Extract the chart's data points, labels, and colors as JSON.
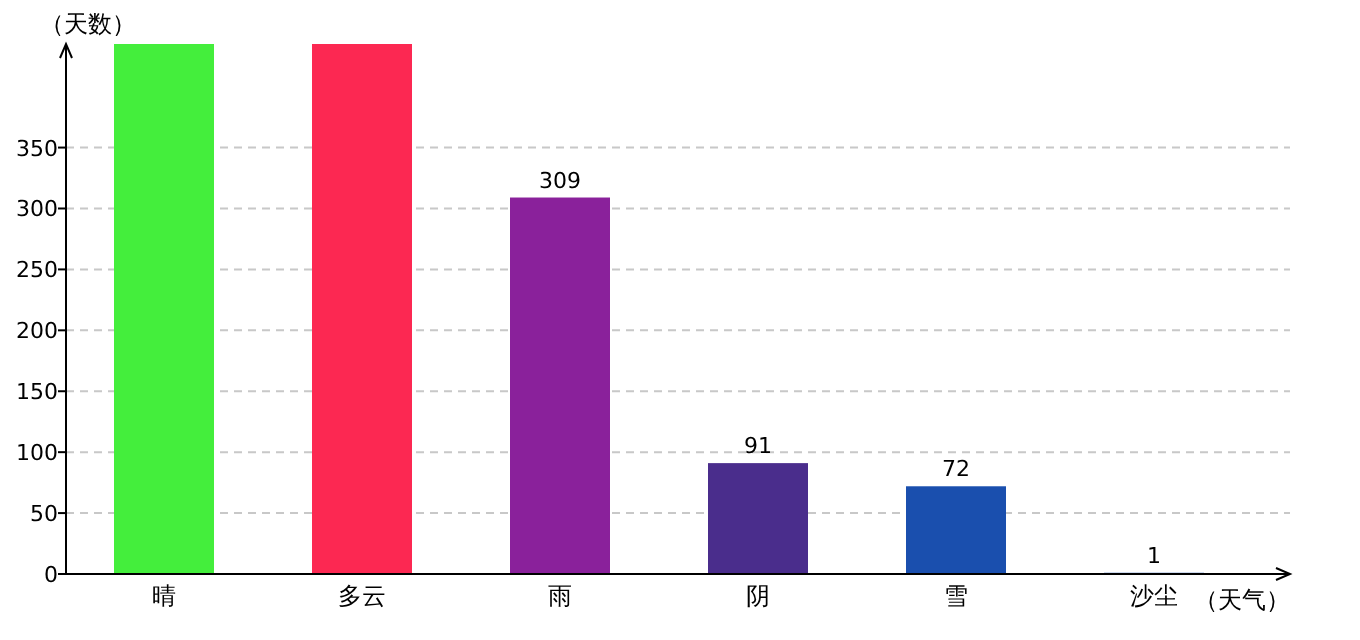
{
  "chart_data": {
    "type": "bar",
    "ylabel": "（天数）",
    "xlabel": "（天气）",
    "categories": [
      "晴",
      "多云",
      "雨",
      "阴",
      "雪",
      "沙尘"
    ],
    "values": [
      435,
      435,
      309,
      91,
      72,
      1
    ],
    "colors": [
      "#44ee3c",
      "#fc2852",
      "#8a219b",
      "#4a2d8c",
      "#1a4fae",
      "#1a4fae"
    ],
    "value_labels": [
      null,
      null,
      "309",
      "91",
      "72",
      "1"
    ],
    "ylim": [
      0,
      435
    ],
    "yticks": [
      0,
      50,
      100,
      150,
      200,
      250,
      300,
      350
    ],
    "grid": "y"
  }
}
